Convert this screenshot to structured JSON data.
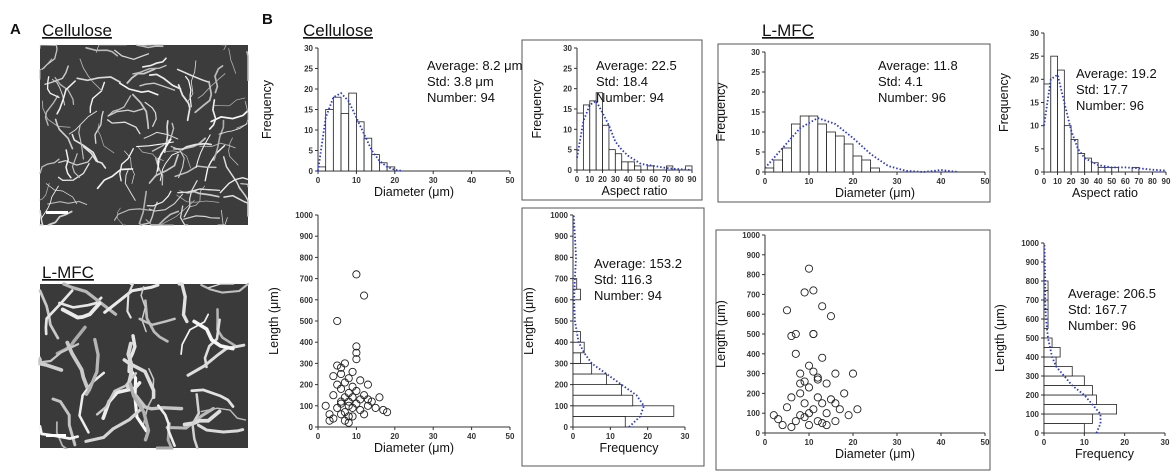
{
  "panel_a": {
    "label": "A",
    "images": [
      {
        "title": "Cellulose"
      },
      {
        "title": "L-MFC"
      }
    ]
  },
  "panel_b": {
    "label": "B",
    "groups": [
      "Cellulose",
      "L-MFC"
    ]
  },
  "chart_data": [
    {
      "type": "histogram",
      "orientation": "vertical",
      "bins": [
        0,
        2,
        4,
        6,
        8,
        10,
        12,
        14,
        16,
        18,
        20
      ],
      "values": [
        1,
        15,
        18,
        14,
        19,
        12,
        8,
        4,
        2,
        1
      ],
      "fit": {
        "x": [
          0,
          2,
          4,
          6,
          8,
          10,
          12,
          14,
          16,
          18,
          20,
          22
        ],
        "values": [
          0,
          13,
          18,
          19,
          17,
          13,
          9,
          5,
          2.5,
          1,
          0.3,
          0
        ]
      },
      "xlim": [
        0,
        50
      ],
      "ylim": [
        0,
        30
      ],
      "xticks": [
        0,
        10,
        20,
        30,
        40,
        50
      ],
      "yticks": [
        0,
        5,
        10,
        15,
        20,
        25,
        30
      ],
      "xlabel": "Diameter (μm)",
      "ylabel": "Frequency",
      "annotations": [
        "Average: 8.2 μm",
        "Std: 3.8 μm",
        "Number: 94"
      ],
      "frame": false,
      "bar_color": "#ffffff",
      "fit_color": "#2a35d8"
    },
    {
      "type": "histogram",
      "orientation": "vertical",
      "bins": [
        0,
        5,
        10,
        15,
        20,
        25,
        30,
        35,
        40,
        45,
        50,
        55,
        60,
        65,
        70,
        75,
        80,
        85,
        90
      ],
      "values": [
        14,
        16,
        17,
        19,
        11,
        5,
        4,
        2,
        2,
        1,
        0,
        1,
        0,
        0,
        1,
        0,
        0,
        1
      ],
      "fit": {
        "x": [
          0,
          5,
          10,
          15,
          20,
          25,
          30,
          35,
          40,
          45,
          50,
          60,
          70,
          80,
          90
        ],
        "values": [
          3,
          12,
          16,
          17,
          14,
          11,
          7,
          5,
          3.5,
          2.5,
          1.5,
          1,
          0.5,
          0.2,
          0
        ]
      },
      "xlim": [
        0,
        90
      ],
      "ylim": [
        0,
        30
      ],
      "xticks": [
        0,
        10,
        20,
        30,
        40,
        50,
        60,
        70,
        80,
        90
      ],
      "yticks": [
        0,
        5,
        10,
        15,
        20,
        25,
        30
      ],
      "xlabel": "Aspect ratio",
      "ylabel": "Frequency",
      "annotations": [
        "Average: 22.5",
        "Std: 18.4",
        "Number: 94"
      ],
      "frame": true,
      "bar_color": "#ffffff",
      "fit_color": "#2a35d8"
    },
    {
      "type": "histogram",
      "orientation": "vertical",
      "bins": [
        0,
        2,
        4,
        6,
        8,
        10,
        12,
        14,
        16,
        18,
        20,
        22,
        24,
        26
      ],
      "values": [
        1,
        3,
        6,
        12,
        14,
        14,
        12,
        10,
        9,
        7,
        4,
        3,
        1
      ],
      "fit": {
        "x": [
          0,
          4,
          8,
          12,
          16,
          20,
          24,
          28,
          32,
          36,
          40,
          44
        ],
        "values": [
          1,
          6,
          11,
          13.5,
          12,
          8.5,
          4.5,
          1.5,
          0.3,
          0,
          0.5,
          0
        ]
      },
      "xlim": [
        0,
        50
      ],
      "ylim": [
        0,
        30
      ],
      "xticks": [
        0,
        10,
        20,
        30,
        40,
        50
      ],
      "yticks": [
        0,
        5,
        10,
        15,
        20,
        25,
        30
      ],
      "xlabel": "Diameter (μm)",
      "ylabel": "Frequency",
      "annotations": [
        "Average: 11.8",
        "Std: 4.1",
        "Number: 96"
      ],
      "frame": true,
      "bar_color": "#ffffff",
      "fit_color": "#2a35d8"
    },
    {
      "type": "histogram",
      "orientation": "vertical",
      "bins": [
        0,
        5,
        10,
        15,
        20,
        25,
        30,
        35,
        40,
        45,
        50,
        55,
        60,
        65,
        70
      ],
      "values": [
        19,
        25,
        22,
        10,
        7,
        4,
        3,
        2,
        1,
        1,
        1,
        0,
        0,
        1
      ],
      "fit": {
        "x": [
          0,
          5,
          10,
          15,
          20,
          25,
          30,
          40,
          50,
          60,
          70,
          80,
          90
        ],
        "values": [
          10,
          20,
          21,
          15,
          9,
          5,
          3,
          1.5,
          1,
          1,
          0.8,
          0.5,
          0.3
        ]
      },
      "xlim": [
        0,
        90
      ],
      "ylim": [
        0,
        30
      ],
      "xticks": [
        0,
        10,
        20,
        30,
        40,
        50,
        60,
        70,
        80,
        90
      ],
      "yticks": [
        0,
        5,
        10,
        15,
        20,
        25,
        30
      ],
      "xlabel": "Aspect ratio",
      "ylabel": "Frequency",
      "annotations": [
        "Average: 19.2",
        "Std: 17.7",
        "Number: 96"
      ],
      "frame": false,
      "bar_color": "#ffffff",
      "fit_color": "#2a35d8"
    },
    {
      "type": "scatter",
      "x": [
        2,
        3,
        4,
        4,
        5,
        5,
        5,
        6,
        6,
        6,
        6,
        7,
        7,
        7,
        7,
        8,
        8,
        8,
        8,
        8,
        9,
        9,
        9,
        9,
        10,
        10,
        10,
        10,
        10,
        11,
        11,
        12,
        12,
        13,
        13,
        14,
        15,
        16,
        17,
        18,
        3,
        5,
        6,
        7,
        9,
        10,
        11,
        12,
        13,
        8,
        4,
        6
      ],
      "y": [
        100,
        60,
        150,
        40,
        200,
        90,
        290,
        120,
        180,
        250,
        60,
        210,
        140,
        70,
        300,
        100,
        160,
        230,
        50,
        120,
        90,
        190,
        260,
        140,
        380,
        110,
        170,
        320,
        720,
        130,
        80,
        620,
        150,
        200,
        100,
        120,
        90,
        140,
        80,
        70,
        30,
        500,
        280,
        30,
        50,
        350,
        220,
        60,
        130,
        20,
        240,
        110
      ],
      "xlim": [
        0,
        50
      ],
      "ylim": [
        0,
        1000
      ],
      "xticks": [
        0,
        10,
        20,
        30,
        40,
        50
      ],
      "yticks": [
        0,
        100,
        200,
        300,
        400,
        500,
        600,
        700,
        800,
        900,
        1000
      ],
      "xlabel": "Diameter (μm)",
      "ylabel": "Length (μm)",
      "frame": false,
      "marker_color": "#222222"
    },
    {
      "type": "histogram",
      "orientation": "horizontal",
      "bins": [
        0,
        50,
        100,
        150,
        200,
        250,
        300,
        350,
        400,
        450,
        500,
        550,
        600,
        650,
        700,
        750
      ],
      "values": [
        14,
        27,
        16,
        13,
        9,
        5,
        2,
        3,
        2,
        0,
        0,
        0,
        2,
        1,
        0
      ],
      "fit": {
        "x": [
          0,
          50,
          100,
          150,
          200,
          250,
          300,
          350,
          400,
          500,
          600,
          700,
          800,
          900,
          1000
        ],
        "values": [
          15,
          18,
          19,
          17,
          13,
          9,
          5,
          3,
          1.5,
          0.5,
          0.3,
          0.5,
          0.8,
          0.5,
          0.2
        ]
      },
      "xlim": [
        0,
        30
      ],
      "ylim": [
        0,
        1000
      ],
      "xticks": [
        0,
        10,
        20,
        30
      ],
      "yticks": [
        0,
        100,
        200,
        300,
        400,
        500,
        600,
        700,
        800,
        900,
        1000
      ],
      "xlabel": "Frequency",
      "ylabel": "Length (μm)",
      "annotations": [
        "Average: 153.2",
        "Std: 116.3",
        "Number: 94"
      ],
      "frame": true,
      "bar_color": "#ffffff",
      "fit_color": "#2a35d8"
    },
    {
      "type": "scatter",
      "x": [
        2,
        3,
        4,
        5,
        5,
        6,
        6,
        7,
        7,
        8,
        8,
        8,
        9,
        9,
        9,
        10,
        10,
        10,
        10,
        11,
        11,
        11,
        11,
        12,
        12,
        12,
        13,
        13,
        13,
        14,
        14,
        15,
        15,
        16,
        16,
        17,
        18,
        19,
        20,
        21,
        6,
        7,
        9,
        11,
        12,
        14,
        16,
        8,
        10,
        13
      ],
      "y": [
        90,
        70,
        40,
        130,
        620,
        180,
        490,
        60,
        500,
        90,
        300,
        200,
        710,
        150,
        260,
        100,
        230,
        830,
        40,
        720,
        120,
        310,
        500,
        280,
        180,
        60,
        640,
        150,
        380,
        100,
        250,
        590,
        170,
        60,
        300,
        120,
        200,
        90,
        300,
        120,
        30,
        400,
        80,
        500,
        270,
        40,
        150,
        250,
        340,
        50
      ],
      "xlim": [
        0,
        50
      ],
      "ylim": [
        0,
        1000
      ],
      "xticks": [
        0,
        10,
        20,
        30,
        40,
        50
      ],
      "yticks": [
        0,
        100,
        200,
        300,
        400,
        500,
        600,
        700,
        800,
        900,
        1000
      ],
      "xlabel": "Diameter (μm)",
      "ylabel": "Length (μm)",
      "frame": true,
      "marker_color": "#222222"
    },
    {
      "type": "histogram",
      "orientation": "horizontal",
      "bins": [
        0,
        50,
        100,
        150,
        200,
        250,
        300,
        350,
        400,
        450,
        500,
        550,
        600,
        650,
        700,
        750,
        800
      ],
      "values": [
        10,
        12,
        18,
        13,
        12,
        10,
        7,
        3,
        4,
        2,
        0,
        1,
        1,
        1,
        1,
        1
      ],
      "fit": {
        "x": [
          0,
          50,
          100,
          150,
          200,
          250,
          300,
          350,
          400,
          500,
          600,
          700,
          800,
          900,
          1000
        ],
        "values": [
          13,
          14,
          14,
          12,
          10,
          7,
          5,
          3,
          2,
          1,
          0.5,
          0.3,
          0.3,
          0.2,
          0.1
        ]
      },
      "xlim": [
        0,
        30
      ],
      "ylim": [
        0,
        1000
      ],
      "xticks": [
        0,
        10,
        20,
        30
      ],
      "yticks": [
        0,
        100,
        200,
        300,
        400,
        500,
        600,
        700,
        800,
        900,
        1000
      ],
      "xlabel": "Frequency",
      "ylabel": "Length (μm)",
      "annotations": [
        "Average: 206.5",
        "Std: 167.7",
        "Number: 96"
      ],
      "frame": false,
      "bar_color": "#ffffff",
      "fit_color": "#2a35d8"
    }
  ]
}
